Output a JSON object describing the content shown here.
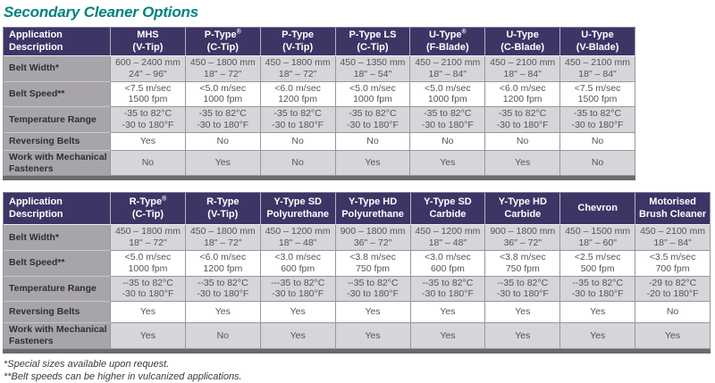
{
  "title": "Secondary Cleaner Options",
  "row_header": "Application Description",
  "row_labels": {
    "belt_width": "Belt Width*",
    "belt_speed": "Belt Speed**",
    "temperature": "Temperature Range",
    "reversing_belts": "Reversing Belts",
    "mechanical_fasteners": "Work with Mechanical Fasteners"
  },
  "footnotes": [
    "*Special sizes available upon request.",
    "**Belt speeds can be higher in vulcanized applications."
  ],
  "colors": {
    "title_teal": "#00837D",
    "header_bg": "#3D3566",
    "header_text": "#FFFFFF",
    "label_column_bg": "#A8A4AB",
    "row_gray_bg": "#D6D5D9",
    "row_white_bg": "#FFFFFF",
    "cell_text": "#545457",
    "shadow_bar": "#6B6A6E"
  },
  "tables": [
    {
      "products": [
        {
          "name": "MHS",
          "subname": "(V-Tip)",
          "belt_width": [
            "600 – 2400 mm",
            "24\" – 96\""
          ],
          "belt_speed": [
            "<7.5 m/sec",
            "1500 fpm"
          ],
          "temperature": [
            "-35 to 82°C",
            "-30 to 180°F"
          ],
          "reversing_belts": "Yes",
          "mechanical_fasteners": "No"
        },
        {
          "name": "P-Type®",
          "subname": "(C-Tip)",
          "belt_width": [
            "450 – 1800 mm",
            "18\" – 72\""
          ],
          "belt_speed": [
            "<5.0 m/sec",
            "1000 fpm"
          ],
          "temperature": [
            "-35 to 82°C",
            "-30 to 180°F"
          ],
          "reversing_belts": "No",
          "mechanical_fasteners": "Yes"
        },
        {
          "name": "P-Type",
          "subname": "(V-Tip)",
          "belt_width": [
            "450 – 1800 mm",
            "18\" – 72\""
          ],
          "belt_speed": [
            "<6.0 m/sec",
            "1200 fpm"
          ],
          "temperature": [
            "-35 to 82°C",
            "-30 to 180°F"
          ],
          "reversing_belts": "No",
          "mechanical_fasteners": "No"
        },
        {
          "name": "P-Type LS",
          "subname": "(C-Tip)",
          "belt_width": [
            "450 – 1350 mm",
            "18\" – 54\""
          ],
          "belt_speed": [
            "<5.0 m/sec",
            "1000 fpm"
          ],
          "temperature": [
            "-35 to 82°C",
            "-30 to 180°F"
          ],
          "reversing_belts": "No",
          "mechanical_fasteners": "Yes"
        },
        {
          "name": "U-Type®",
          "subname": "(F-Blade)",
          "belt_width": [
            "450 – 2100 mm",
            "18\" – 84\""
          ],
          "belt_speed": [
            "<5.0 m/sec",
            "1000 fpm"
          ],
          "temperature": [
            "-35 to 82°C",
            "-30 to 180°F"
          ],
          "reversing_belts": "No",
          "mechanical_fasteners": "Yes"
        },
        {
          "name": "U-Type",
          "subname": "(C-Blade)",
          "belt_width": [
            "450 – 2100 mm",
            "18\" – 84\""
          ],
          "belt_speed": [
            "<6.0 m/sec",
            "1200 fpm"
          ],
          "temperature": [
            "-35 to 82°C",
            "-30 to 180°F"
          ],
          "reversing_belts": "No",
          "mechanical_fasteners": "Yes"
        },
        {
          "name": "U-Type",
          "subname": "(V-Blade)",
          "belt_width": [
            "450 – 2100 mm",
            "18\" – 84\""
          ],
          "belt_speed": [
            "<7.5 m/sec",
            "1500 fpm"
          ],
          "temperature": [
            "-35 to 82°C",
            "-30 to 180°F"
          ],
          "reversing_belts": "No",
          "mechanical_fasteners": "No"
        }
      ]
    },
    {
      "products": [
        {
          "name": "R-Type®",
          "subname": "(C-Tip)",
          "belt_width": [
            "450 – 1800 mm",
            "18\" – 72\""
          ],
          "belt_speed": [
            "<5.0 m/sec",
            "1000 fpm"
          ],
          "temperature": [
            "--35 to 82°C",
            "-30 to 180°F"
          ],
          "reversing_belts": "Yes",
          "mechanical_fasteners": "Yes"
        },
        {
          "name": "R-Type",
          "subname": "(V-Tip)",
          "belt_width": [
            "450 – 1800 mm",
            "18\" – 72\""
          ],
          "belt_speed": [
            "<6.0 m/sec",
            "1200 fpm"
          ],
          "temperature": [
            "--35 to 82°C",
            "-30 to 180°F"
          ],
          "reversing_belts": "Yes",
          "mechanical_fasteners": "No"
        },
        {
          "name": "Y-Type SD",
          "subname": "Polyurethane",
          "belt_width": [
            "450 – 1200 mm",
            "18\" – 48\""
          ],
          "belt_speed": [
            "<3.0 m/sec",
            "600 fpm"
          ],
          "temperature": [
            "---35 to 82°C",
            "-30 to 180°F"
          ],
          "reversing_belts": "Yes",
          "mechanical_fasteners": "Yes"
        },
        {
          "name": "Y-Type HD",
          "subname": "Polyurethane",
          "belt_width": [
            "900 – 1800 mm",
            "36\" – 72\""
          ],
          "belt_speed": [
            "<3.8 m/sec",
            "750 fpm"
          ],
          "temperature": [
            "--35 to 82°C",
            "-30 to 180°F"
          ],
          "reversing_belts": "Yes",
          "mechanical_fasteners": "Yes"
        },
        {
          "name": "Y-Type SD",
          "subname": "Carbide",
          "belt_width": [
            "450 – 1200 mm",
            "18\" – 48\""
          ],
          "belt_speed": [
            "<3.0 m/sec",
            "600 fpm"
          ],
          "temperature": [
            "--35 to 82°C",
            "-30 to 180°F"
          ],
          "reversing_belts": "Yes",
          "mechanical_fasteners": "Yes"
        },
        {
          "name": "Y-Type HD",
          "subname": "Carbide",
          "belt_width": [
            "900 – 1800 mm",
            "36\" – 72\""
          ],
          "belt_speed": [
            "<3.8 m/sec",
            "750 fpm"
          ],
          "temperature": [
            "--35 to 82°C",
            "-30 to 180°F"
          ],
          "reversing_belts": "Yes",
          "mechanical_fasteners": "Yes"
        },
        {
          "name": "Chevron",
          "subname": "",
          "belt_width": [
            "450 – 1500 mm",
            "18\" – 60\""
          ],
          "belt_speed": [
            "<2.5 m/sec",
            "500 fpm"
          ],
          "temperature": [
            "--35 to 82°C",
            "-30 to 180°F"
          ],
          "reversing_belts": "Yes",
          "mechanical_fasteners": "Yes"
        },
        {
          "name": "Motorised",
          "subname": "Brush Cleaner",
          "belt_width": [
            "450 – 2100 mm",
            "18\" – 84\""
          ],
          "belt_speed": [
            "<3.5 m/sec",
            "700 fpm"
          ],
          "temperature": [
            "-29 to 82°C",
            "-20 to 180°F"
          ],
          "reversing_belts": "No",
          "mechanical_fasteners": "Yes"
        }
      ]
    }
  ]
}
